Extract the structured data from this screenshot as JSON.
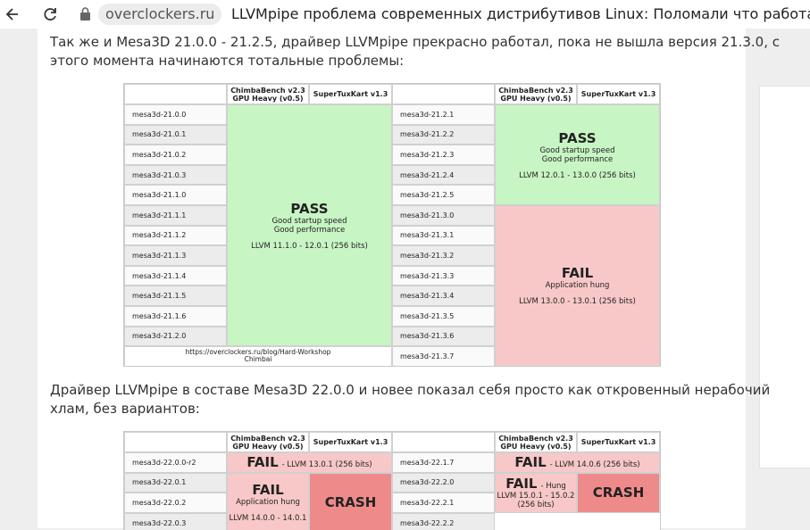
{
  "browser": {
    "url": "overclockers.ru",
    "title": "LLVMpipe проблема современных дистрибутивов Linux: Поломали что работало"
  },
  "paragraphs": [
    [
      "Так же и Mesa3D 21.0.0 - 21.2.5, драйвер LLVMpipe прекрасно работал, пока не вышла версия 21.3.0, с",
      "этого момента начинаются тотальные проблемы:"
    ],
    [
      "Драйвер LLVMpipe в составе Mesa3D 22.0.0 и новее показал себя просто как откровенный нерабочий",
      "хлам, без вариантов:"
    ]
  ],
  "images": [
    {
      "halves": [
        {
          "header": {
            "bench": [
              "ChimbaBench v2.3",
              "GPU Heavy (v0.5)"
            ],
            "game": "SuperTuxKart v1.3"
          },
          "rows": [
            "mesa3d-21.0.0",
            "mesa3d-21.0.1",
            "mesa3d-21.0.2",
            "mesa3d-21.0.3",
            "mesa3d-21.1.0",
            "mesa3d-21.1.1",
            "mesa3d-21.1.2",
            "mesa3d-21.1.3",
            "mesa3d-21.1.4",
            "mesa3d-21.1.5",
            "mesa3d-21.1.6",
            "mesa3d-21.2.0"
          ],
          "blocks": [
            {
              "status": "PASS",
              "notes": [
                "Good startup speed",
                "Good performance"
              ],
              "llvm": [
                "LLVM 11.1.0 - 12.0.1 (256 bits)"
              ]
            }
          ],
          "footer": [
            "https://overclockers.ru/blog/Hard-Workshop",
            "Chimbai"
          ]
        },
        {
          "header": {
            "bench": [
              "ChimbaBench v2.3",
              "GPU Heavy (v0.5)"
            ],
            "game": "SuperTuxKart v1.3"
          },
          "rows": [
            "mesa3d-21.2.1",
            "mesa3d-21.2.2",
            "mesa3d-21.2.3",
            "mesa3d-21.2.4",
            "mesa3d-21.2.5",
            "mesa3d-21.3.0",
            "mesa3d-21.3.1",
            "mesa3d-21.3.2",
            "mesa3d-21.3.3",
            "mesa3d-21.3.4",
            "mesa3d-21.3.5",
            "mesa3d-21.3.6",
            "mesa3d-21.3.7"
          ],
          "blocks": [
            {
              "status": "PASS",
              "notes": [
                "Good startup speed",
                "Good performance"
              ],
              "llvm": [
                "LLVM 12.0.1 - 13.0.0 (256 bits)"
              ]
            },
            {
              "status": "FAIL",
              "notes": [
                "Application hung"
              ],
              "llvm": [
                "LLVM 13.0.0 - 13.0.1 (256 bits)"
              ]
            }
          ]
        }
      ]
    },
    {
      "halves": [
        {
          "header": {
            "bench": [
              "ChimbaBench v2.3",
              "GPU Heavy (v0.5)"
            ],
            "game": "SuperTuxKart v1.3"
          },
          "rows": [
            "mesa3d-22.0.0-r2",
            "mesa3d-22.0.1",
            "mesa3d-22.0.2",
            "mesa3d-22.0.3"
          ],
          "blocks": [
            {
              "status": "FAIL",
              "suffix": "- LLVM 13.0.1 (256 bits)"
            },
            {
              "status": "FAIL",
              "notes": [
                "Application hung"
              ],
              "llvm": [
                "LLVM 14.0.0 - 14.0.1"
              ]
            },
            {
              "status": "CRASH"
            }
          ]
        },
        {
          "header": {
            "bench": [
              "ChimbaBench v2.3",
              "GPU Heavy (v0.5)"
            ],
            "game": "SuperTuxKart v1.3"
          },
          "rows": [
            "mesa3d-22.1.7",
            "mesa3d-22.2.0",
            "mesa3d-22.2.1",
            "mesa3d-22.2.2"
          ],
          "blocks": [
            {
              "status": "FAIL",
              "suffix": "- LLVM 14.0.6 (256 bits)"
            },
            {
              "status": "FAIL",
              "suffix": "- Hung",
              "llvm": [
                "LLVM 15.0.1 - 15.0.2",
                "(256 bits)"
              ]
            },
            {
              "status": "CRASH"
            }
          ]
        }
      ]
    }
  ]
}
